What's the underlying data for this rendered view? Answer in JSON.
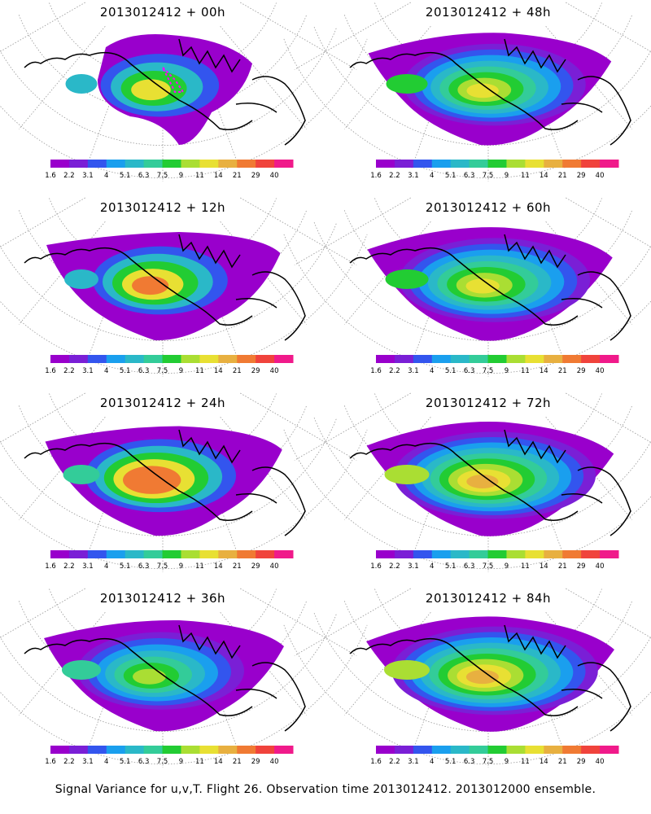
{
  "panels": [
    {
      "title": "2013012412 + 00h"
    },
    {
      "title": "2013012412 + 48h"
    },
    {
      "title": "2013012412 + 12h"
    },
    {
      "title": "2013012412 + 60h"
    },
    {
      "title": "2013012412 + 24h"
    },
    {
      "title": "2013012412 + 72h"
    },
    {
      "title": "2013012412 + 36h"
    },
    {
      "title": "2013012412 + 84h"
    }
  ],
  "colorbar": {
    "labels": [
      "1.6",
      "2.2",
      "3.1",
      "4",
      "5.1",
      "6.3",
      "7.5",
      "9",
      "11",
      "14",
      "21",
      "29",
      "40"
    ],
    "colors": [
      "#9900cc",
      "#7a1fd6",
      "#3355ee",
      "#1a9fee",
      "#2ab8c8",
      "#33cc99",
      "#22cc33",
      "#aade33",
      "#e8e033",
      "#e8b040",
      "#f07a33",
      "#f0433c",
      "#f01a8a"
    ]
  },
  "footer": "Signal Variance for u,v,T. Flight 26. Observation time 2013012412. 2013012000 ensemble."
}
